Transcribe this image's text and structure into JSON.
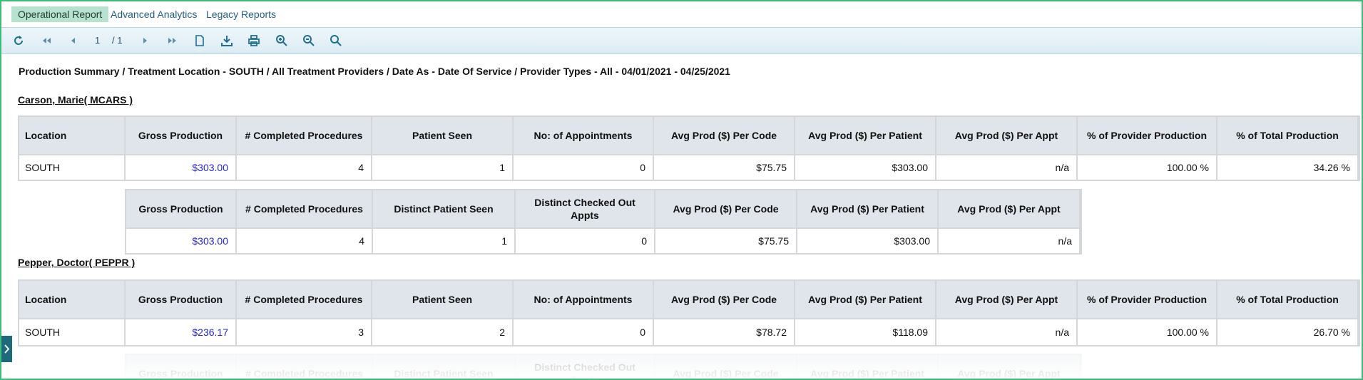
{
  "tabs": [
    "Operational Report",
    "Advanced Analytics",
    "Legacy Reports"
  ],
  "toolbar": {
    "page": "1",
    "page_total": "/ 1"
  },
  "report_title": "Production Summary / Treatment Location - SOUTH / All Treatment Providers / Date As - Date Of Service / Provider Types - All - 04/01/2021 - 04/25/2021",
  "main_headers": [
    "Location",
    "Gross Production",
    "# Completed Procedures",
    "Patient Seen",
    "No: of Appointments",
    "Avg Prod ($) Per Code",
    "Avg Prod ($) Per Patient",
    "Avg Prod ($) Per Appt",
    "% of Provider Production",
    "% of Total Production"
  ],
  "summary_headers": [
    "Gross Production",
    "# Completed Procedures",
    "Distinct Patient Seen",
    "Distinct Checked Out Appts",
    "Avg Prod ($) Per Code",
    "Avg Prod ($) Per Patient",
    "Avg Prod ($) Per Appt"
  ],
  "providers": [
    {
      "name": "Carson, Marie( MCARS )",
      "main_row": [
        "SOUTH",
        "$303.00",
        "4",
        "1",
        "0",
        "$75.75",
        "$303.00",
        "n/a",
        "100.00 %",
        "34.26 %"
      ],
      "summary_row": [
        "$303.00",
        "4",
        "1",
        "0",
        "$75.75",
        "$303.00",
        "n/a"
      ]
    },
    {
      "name": "Pepper, Doctor( PEPPR )",
      "main_row": [
        "SOUTH",
        "$236.17",
        "3",
        "2",
        "0",
        "$78.72",
        "$118.09",
        "n/a",
        "100.00 %",
        "26.70 %"
      ]
    }
  ]
}
